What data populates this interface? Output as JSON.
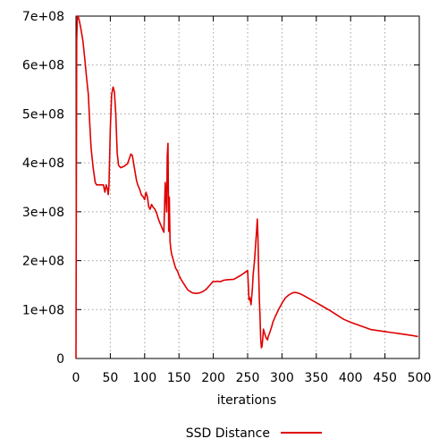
{
  "chart_data": {
    "type": "line",
    "title": "",
    "xlabel": "iterations",
    "ylabel": "",
    "xlim": [
      0,
      500
    ],
    "ylim": [
      0,
      700000000
    ],
    "x_ticks": [
      {
        "value": 0,
        "label": "0"
      },
      {
        "value": 50,
        "label": "50"
      },
      {
        "value": 100,
        "label": "100"
      },
      {
        "value": 150,
        "label": "150"
      },
      {
        "value": 200,
        "label": "200"
      },
      {
        "value": 250,
        "label": "250"
      },
      {
        "value": 300,
        "label": "300"
      },
      {
        "value": 350,
        "label": "350"
      },
      {
        "value": 400,
        "label": "400"
      },
      {
        "value": 450,
        "label": "450"
      },
      {
        "value": 500,
        "label": "500"
      }
    ],
    "y_ticks": [
      {
        "value": 0,
        "label": "0"
      },
      {
        "value": 100000000,
        "label": "1e+08"
      },
      {
        "value": 200000000,
        "label": "2e+08"
      },
      {
        "value": 300000000,
        "label": "3e+08"
      },
      {
        "value": 400000000,
        "label": "4e+08"
      },
      {
        "value": 500000000,
        "label": "5e+08"
      },
      {
        "value": 600000000,
        "label": "6e+08"
      },
      {
        "value": 700000000,
        "label": "7e+08"
      }
    ],
    "grid": true,
    "legend": {
      "position": "bottom-center"
    },
    "series": [
      {
        "name": "SSD Distance",
        "color": "#e00000",
        "x": [
          0,
          0.5,
          1,
          2,
          3,
          5,
          7,
          10,
          13,
          15,
          18,
          20,
          22,
          25,
          28,
          30,
          33,
          36,
          40,
          42,
          44,
          46,
          47,
          48,
          50,
          52,
          54,
          56,
          58,
          60,
          62,
          65,
          70,
          75,
          78,
          80,
          82,
          85,
          88,
          90,
          93,
          95,
          98,
          100,
          102,
          104,
          106,
          108,
          110,
          112,
          115,
          118,
          120,
          122,
          125,
          128,
          130,
          132,
          133,
          134,
          135,
          136,
          137,
          138,
          139,
          140,
          141,
          143,
          145,
          148,
          150,
          153,
          156,
          160,
          163,
          166,
          170,
          175,
          180,
          185,
          190,
          195,
          198,
          200,
          203,
          205,
          210,
          215,
          220,
          230,
          240,
          245,
          250,
          252,
          253,
          255,
          257,
          258,
          260,
          262,
          263,
          264,
          265,
          266,
          267,
          268,
          269,
          270,
          271,
          272,
          273,
          274,
          275,
          277,
          279,
          280,
          282,
          285,
          287,
          290,
          295,
          300,
          305,
          310,
          315,
          320,
          325,
          330,
          335,
          340,
          350,
          360,
          370,
          380,
          390,
          400,
          410,
          420,
          430,
          440,
          450,
          460,
          470,
          480,
          490,
          498
        ],
        "y": [
          0,
          350000000,
          650000000,
          700000000,
          700000000,
          690000000,
          675000000,
          650000000,
          610000000,
          580000000,
          540000000,
          480000000,
          430000000,
          390000000,
          360000000,
          355000000,
          355000000,
          355000000,
          355000000,
          340000000,
          355000000,
          345000000,
          335000000,
          355000000,
          470000000,
          540000000,
          555000000,
          545000000,
          500000000,
          420000000,
          395000000,
          390000000,
          393000000,
          398000000,
          410000000,
          418000000,
          415000000,
          390000000,
          365000000,
          355000000,
          345000000,
          335000000,
          330000000,
          325000000,
          340000000,
          330000000,
          310000000,
          305000000,
          315000000,
          310000000,
          305000000,
          295000000,
          285000000,
          278000000,
          268000000,
          258000000,
          360000000,
          300000000,
          415000000,
          440000000,
          260000000,
          330000000,
          240000000,
          225000000,
          215000000,
          210000000,
          205000000,
          195000000,
          185000000,
          178000000,
          170000000,
          162000000,
          155000000,
          146000000,
          140000000,
          137000000,
          134000000,
          133000000,
          134000000,
          137000000,
          142000000,
          150000000,
          155000000,
          158000000,
          157000000,
          158000000,
          157000000,
          160000000,
          161000000,
          162000000,
          170000000,
          175000000,
          180000000,
          120000000,
          125000000,
          110000000,
          145000000,
          170000000,
          200000000,
          240000000,
          260000000,
          285000000,
          250000000,
          180000000,
          120000000,
          90000000,
          40000000,
          22000000,
          25000000,
          40000000,
          60000000,
          55000000,
          50000000,
          42000000,
          38000000,
          45000000,
          52000000,
          65000000,
          75000000,
          85000000,
          100000000,
          113000000,
          124000000,
          130000000,
          134000000,
          135000000,
          133000000,
          130000000,
          126000000,
          122000000,
          114000000,
          106000000,
          98000000,
          89000000,
          80000000,
          74000000,
          69000000,
          64000000,
          59000000,
          57000000,
          55000000,
          53000000,
          51000000,
          49000000,
          47000000,
          45000000
        ]
      }
    ]
  }
}
